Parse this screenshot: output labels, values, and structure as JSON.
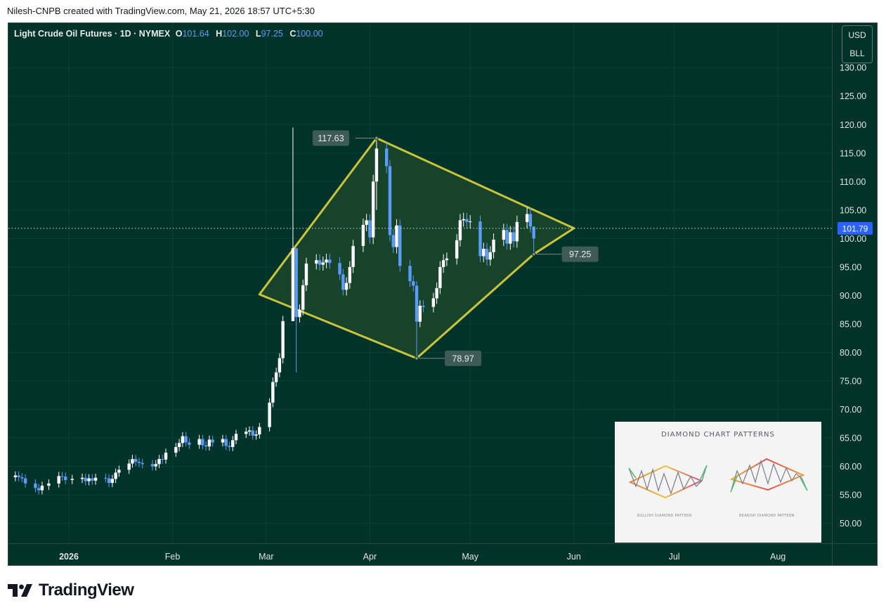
{
  "header": {
    "credit": "Nilesh-CNPB created with TradingView.com, May 21, 2026 18:57 UTC+5:30"
  },
  "symbol": {
    "name": "Light Crude Oil Futures · 1D · NYMEX",
    "open_label": "O",
    "open": "101.64",
    "high_label": "H",
    "high": "102.00",
    "low_label": "L",
    "low": "97.25",
    "close_label": "C",
    "close": "100.00"
  },
  "currency": {
    "line1": "USD",
    "line2": "BLL"
  },
  "colors": {
    "background": "#02332a",
    "up": "#ffffff",
    "down": "#5b9cf6",
    "pattern": "#c9c43a",
    "pattern_fill": "#1f4a2c",
    "price_label": "#2962ff"
  },
  "chart_data": {
    "type": "candlestick",
    "instrument": "Light Crude Oil Futures",
    "interval": "1D",
    "exchange": "NYMEX",
    "ylim": [
      45,
      131
    ],
    "y_ticks": [
      "130.00",
      "125.00",
      "120.00",
      "115.00",
      "110.00",
      "105.00",
      "100.00",
      "95.00",
      "90.00",
      "85.00",
      "80.00",
      "75.00",
      "70.00",
      "65.00",
      "60.00",
      "55.00",
      "50.00"
    ],
    "x_ticks": [
      {
        "label": "2026",
        "x": "2026-01-01"
      },
      {
        "label": "Feb",
        "x": "2026-02-01"
      },
      {
        "label": "Mar",
        "x": "2026-03-01"
      },
      {
        "label": "Apr",
        "x": "2026-04-01"
      },
      {
        "label": "May",
        "x": "2026-05-01"
      },
      {
        "label": "Jun",
        "x": "2026-06-01"
      },
      {
        "label": "Jul",
        "x": "2026-07-01"
      },
      {
        "label": "Aug",
        "x": "2026-08-01"
      }
    ],
    "last_price": 101.79,
    "last_price_label": "101.79",
    "closes": [
      [
        "2025-12-16",
        58.4
      ],
      [
        "2025-12-17",
        58.1
      ],
      [
        "2025-12-18",
        57.9
      ],
      [
        "2025-12-19",
        57.0
      ],
      [
        "2025-12-22",
        56.2
      ],
      [
        "2025-12-23",
        55.8
      ],
      [
        "2025-12-24",
        56.6
      ],
      [
        "2025-12-26",
        57.0
      ],
      [
        "2025-12-29",
        58.3
      ],
      [
        "2025-12-30",
        58.2
      ],
      [
        "2025-12-31",
        57.6
      ],
      [
        "2026-01-02",
        57.8
      ],
      [
        "2026-01-05",
        58.0
      ],
      [
        "2026-01-06",
        57.4
      ],
      [
        "2026-01-07",
        57.9
      ],
      [
        "2026-01-08",
        57.5
      ],
      [
        "2026-01-09",
        58.0
      ],
      [
        "2026-01-12",
        57.9
      ],
      [
        "2026-01-13",
        57.1
      ],
      [
        "2026-01-14",
        57.8
      ],
      [
        "2026-01-15",
        58.9
      ],
      [
        "2026-01-16",
        59.4
      ],
      [
        "2026-01-19",
        60.5
      ],
      [
        "2026-01-20",
        61.3
      ],
      [
        "2026-01-21",
        60.8
      ],
      [
        "2026-01-22",
        60.6
      ],
      [
        "2026-01-23",
        60.4
      ],
      [
        "2026-01-26",
        60.0
      ],
      [
        "2026-01-27",
        60.4
      ],
      [
        "2026-01-28",
        61.3
      ],
      [
        "2026-01-29",
        61.2
      ],
      [
        "2026-01-30",
        62.4
      ],
      [
        "2026-02-02",
        63.4
      ],
      [
        "2026-02-03",
        64.1
      ],
      [
        "2026-02-04",
        65.3
      ],
      [
        "2026-02-05",
        64.2
      ],
      [
        "2026-02-06",
        63.8
      ],
      [
        "2026-02-09",
        64.8
      ],
      [
        "2026-02-10",
        63.7
      ],
      [
        "2026-02-11",
        63.5
      ],
      [
        "2026-02-12",
        64.7
      ],
      [
        "2026-02-13",
        64.2
      ],
      [
        "2026-02-16",
        64.8
      ],
      [
        "2026-02-17",
        63.6
      ],
      [
        "2026-02-18",
        63.4
      ],
      [
        "2026-02-19",
        64.6
      ],
      [
        "2026-02-20",
        65.7
      ],
      [
        "2026-02-23",
        66.1
      ],
      [
        "2026-02-24",
        66.3
      ],
      [
        "2026-02-25",
        65.4
      ],
      [
        "2026-02-26",
        65.6
      ],
      [
        "2026-02-27",
        66.9
      ],
      [
        "2026-03-02",
        71.2
      ],
      [
        "2026-03-03",
        74.8
      ],
      [
        "2026-03-04",
        76.5
      ],
      [
        "2026-03-05",
        79.0
      ],
      [
        "2026-03-06",
        85.5
      ],
      [
        "2026-03-09",
        98.3
      ],
      [
        "2026-03-10",
        86.2
      ],
      [
        "2026-03-11",
        87.5
      ],
      [
        "2026-03-12",
        91.8
      ],
      [
        "2026-03-13",
        95.6
      ],
      [
        "2026-03-16",
        96.2
      ],
      [
        "2026-03-17",
        95.4
      ],
      [
        "2026-03-18",
        95.8
      ],
      [
        "2026-03-19",
        96.3
      ],
      [
        "2026-03-20",
        95.7
      ],
      [
        "2026-03-23",
        93.7
      ],
      [
        "2026-03-24",
        91.0
      ],
      [
        "2026-03-25",
        92.2
      ],
      [
        "2026-03-26",
        95.0
      ],
      [
        "2026-03-27",
        98.7
      ],
      [
        "2026-03-30",
        102.4
      ],
      [
        "2026-03-31",
        103.2
      ],
      [
        "2026-04-01",
        100.2
      ],
      [
        "2026-04-02",
        110.0
      ],
      [
        "2026-04-03",
        115.8
      ],
      [
        "2026-04-06",
        112.7
      ],
      [
        "2026-04-07",
        100.6
      ],
      [
        "2026-04-08",
        98.5
      ],
      [
        "2026-04-09",
        102.3
      ],
      [
        "2026-04-10",
        95.2
      ],
      [
        "2026-04-13",
        92.5
      ],
      [
        "2026-04-14",
        91.7
      ],
      [
        "2026-04-15",
        85.4
      ],
      [
        "2026-04-16",
        88.2
      ],
      [
        "2026-04-17",
        88.0
      ],
      [
        "2026-04-20",
        89.5
      ],
      [
        "2026-04-21",
        91.3
      ],
      [
        "2026-04-22",
        95.0
      ],
      [
        "2026-04-23",
        96.2
      ],
      [
        "2026-04-24",
        96.5
      ],
      [
        "2026-04-27",
        99.7
      ],
      [
        "2026-04-28",
        103.2
      ],
      [
        "2026-04-29",
        103.4
      ],
      [
        "2026-04-30",
        102.9
      ],
      [
        "2026-05-01",
        103.0
      ],
      [
        "2026-05-04",
        96.9
      ],
      [
        "2026-05-05",
        98.2
      ],
      [
        "2026-05-06",
        96.3
      ],
      [
        "2026-05-07",
        97.6
      ],
      [
        "2026-05-08",
        99.8
      ],
      [
        "2026-05-11",
        101.5
      ],
      [
        "2026-05-12",
        99.1
      ],
      [
        "2026-05-13",
        101.1
      ],
      [
        "2026-05-14",
        99.5
      ],
      [
        "2026-05-15",
        102.9
      ],
      [
        "2026-05-18",
        104.3
      ],
      [
        "2026-05-19",
        102.1
      ],
      [
        "2026-05-20",
        100.0
      ]
    ],
    "annotations": {
      "diamond_pattern": [
        {
          "x": "2026-02-27",
          "y": 90.2
        },
        {
          "x": "2026-04-03",
          "y": 117.63
        },
        {
          "x": "2026-06-01",
          "y": 101.8
        },
        {
          "x": "2026-05-20",
          "y": 97.25
        },
        {
          "x": "2026-04-15",
          "y": 78.97
        }
      ],
      "price_labels": [
        "117.63",
        "78.97",
        "97.25"
      ]
    }
  },
  "inset": {
    "title": "DIAMOND CHART PATTERNS",
    "bullish_caption": "BULLISH DIAMOND PATTERN",
    "bearish_caption": "BEARISH DIAMOND PATTERN"
  },
  "branding": {
    "logo_text": "TradingView"
  }
}
